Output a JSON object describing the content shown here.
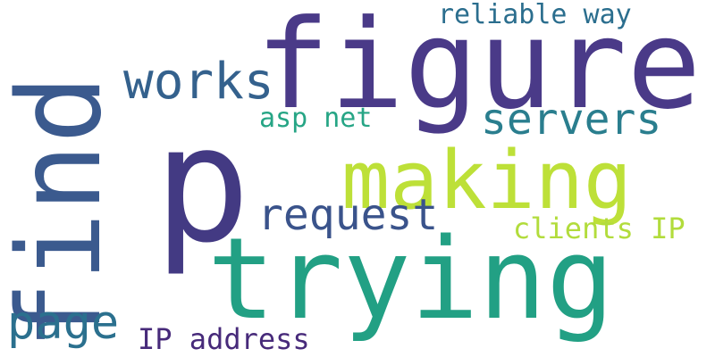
{
  "words": [
    {
      "id": "find",
      "text": "find",
      "color": "#3b5a8e"
    },
    {
      "id": "p",
      "text": "p",
      "color": "#433a83"
    },
    {
      "id": "figure",
      "text": "figure",
      "color": "#4a3a88"
    },
    {
      "id": "trying",
      "text": "trying",
      "color": "#22a084"
    },
    {
      "id": "making",
      "text": "making",
      "color": "#bde038"
    },
    {
      "id": "works",
      "text": "works",
      "color": "#34618d"
    },
    {
      "id": "servers",
      "text": "servers",
      "color": "#2a7e8e"
    },
    {
      "id": "request",
      "text": "request",
      "color": "#3a538b"
    },
    {
      "id": "page",
      "text": "page",
      "color": "#2b708e"
    },
    {
      "id": "reliable-way",
      "text": "reliable way",
      "color": "#2b6e8e"
    },
    {
      "id": "asp-net",
      "text": "asp net",
      "color": "#26a585"
    },
    {
      "id": "clients-ip",
      "text": "clients IP",
      "color": "#b2dc3c"
    },
    {
      "id": "ip-address",
      "text": "IP address",
      "color": "#472a7a"
    }
  ]
}
